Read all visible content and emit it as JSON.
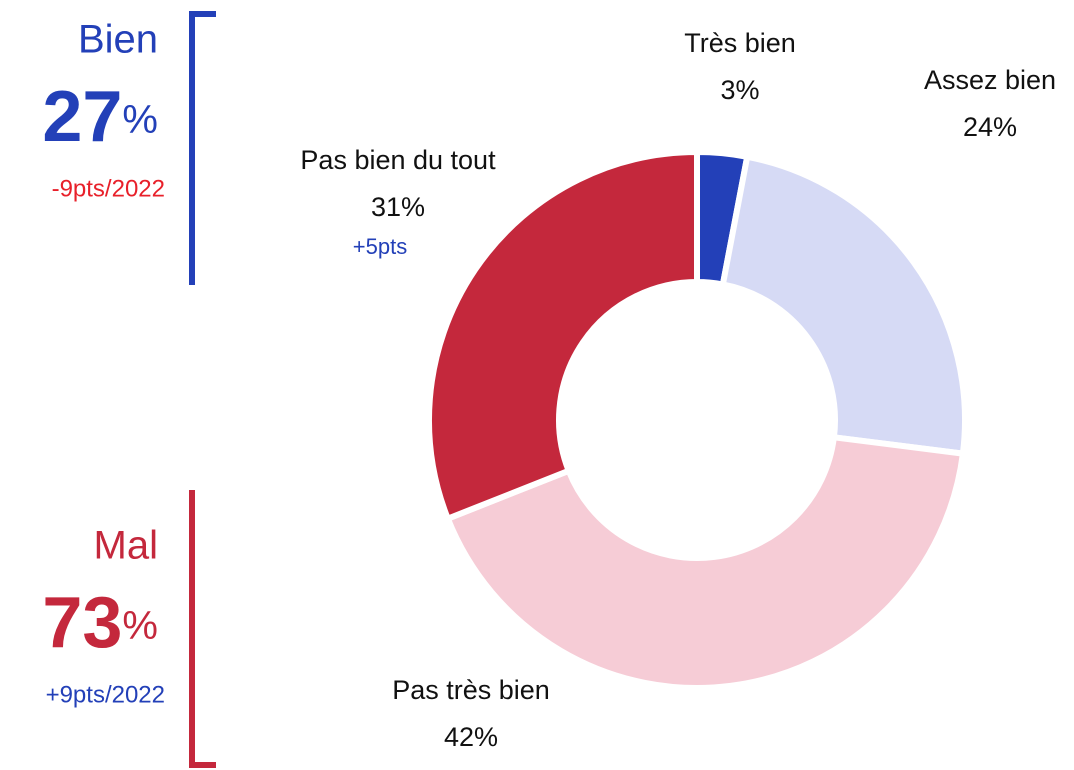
{
  "chart_data": {
    "type": "donut",
    "categories": [
      "Très bien",
      "Assez bien",
      "Pas très bien",
      "Pas bien du tout"
    ],
    "values": [
      3,
      24,
      42,
      31
    ],
    "value_labels": [
      "3%",
      "24%",
      "42%",
      "31%"
    ],
    "changes": [
      null,
      null,
      null,
      "+5pts"
    ],
    "colors": [
      "#2340b8",
      "#d6daf5",
      "#f6ccd6",
      "#c4283c"
    ],
    "groups": [
      {
        "name": "Bien",
        "value": 27,
        "unit": "%",
        "change": "-9pts/2022",
        "color": "#2340b8",
        "change_color": "#e8202a"
      },
      {
        "name": "Mal",
        "value": 73,
        "unit": "%",
        "change": "+9pts/2022",
        "color": "#c4283c",
        "change_color": "#2340b8"
      }
    ]
  }
}
